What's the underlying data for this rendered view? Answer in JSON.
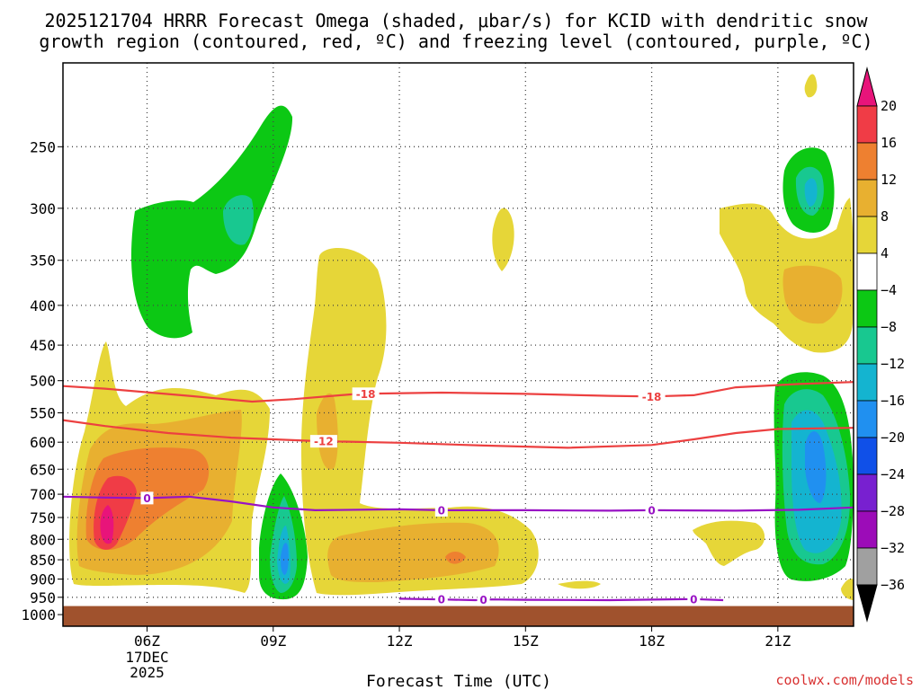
{
  "chart_data": {
    "type": "heatmap",
    "title_line1": "2025121704 HRRR Forecast Omega (shaded, μbar/s) for KCID with dendritic snow",
    "title_line2": "growth region (contoured, red, ºC) and freezing level (contoured, purple, ºC)",
    "xlabel": "Forecast Time (UTC)",
    "credit": "coolwx.com/models",
    "x_range_hours": [
      4.0,
      22.8
    ],
    "x_ticks": [
      {
        "hour": 6,
        "label": "06Z",
        "sub1": "17DEC",
        "sub2": "2025"
      },
      {
        "hour": 9,
        "label": "09Z"
      },
      {
        "hour": 12,
        "label": "12Z"
      },
      {
        "hour": 15,
        "label": "15Z"
      },
      {
        "hour": 18,
        "label": "18Z"
      },
      {
        "hour": 21,
        "label": "21Z"
      }
    ],
    "y_range_hpa": [
      195,
      1035
    ],
    "y_ticks": [
      250,
      300,
      350,
      400,
      450,
      500,
      550,
      600,
      650,
      700,
      750,
      800,
      850,
      900,
      950,
      1000
    ],
    "ground_level_hpa": 975,
    "colorbar": {
      "labels": [
        "20",
        "16",
        "12",
        "8",
        "4",
        "−4",
        "−8",
        "−12",
        "−16",
        "−20",
        "−24",
        "−28",
        "−32",
        "−36"
      ],
      "colors": [
        "#f03c46",
        "#ee8030",
        "#e8b030",
        "#e6d638",
        "#ffffff",
        "#0cc814",
        "#18c890",
        "#14b4d0",
        "#2090f0",
        "#1050e8",
        "#7820d0",
        "#9c0cb8",
        "#a0a0a0"
      ],
      "top_arrow_color": "#e8147a",
      "bottom_arrow_color": "#000000"
    },
    "contours": [
      {
        "name": "-18 C",
        "label": "-18",
        "color": "#ec4040",
        "points": [
          [
            4.0,
            508
          ],
          [
            5.0,
            512
          ],
          [
            7.0,
            523
          ],
          [
            8.5,
            532
          ],
          [
            9.5,
            528
          ],
          [
            11.0,
            520
          ],
          [
            13.0,
            518
          ],
          [
            15.0,
            520
          ],
          [
            17.0,
            523
          ],
          [
            18.0,
            524
          ],
          [
            19.0,
            522
          ],
          [
            20.0,
            510
          ],
          [
            21.5,
            505
          ],
          [
            22.8,
            502
          ]
        ],
        "label_hours": [
          11.2,
          18.0
        ]
      },
      {
        "name": "-12 C",
        "label": "-12",
        "color": "#ec4040",
        "points": [
          [
            4.0,
            562
          ],
          [
            5.0,
            572
          ],
          [
            6.5,
            584
          ],
          [
            8.0,
            592
          ],
          [
            9.0,
            595
          ],
          [
            10.0,
            598
          ],
          [
            12.0,
            601
          ],
          [
            14.0,
            606
          ],
          [
            16.0,
            610
          ],
          [
            18.0,
            605
          ],
          [
            19.0,
            595
          ],
          [
            20.0,
            584
          ],
          [
            21.0,
            577
          ],
          [
            22.8,
            575
          ]
        ],
        "label_hours": [
          10.2
        ]
      },
      {
        "name": "0 C freezing level",
        "label": "0",
        "color": "#9812c4",
        "points": [
          [
            4.0,
            705
          ],
          [
            5.0,
            707
          ],
          [
            6.0,
            708
          ],
          [
            7.0,
            705
          ],
          [
            8.0,
            715
          ],
          [
            9.0,
            728
          ],
          [
            10.0,
            734
          ],
          [
            12.0,
            732
          ],
          [
            13.0,
            734
          ],
          [
            15.0,
            734
          ],
          [
            17.0,
            735
          ],
          [
            18.0,
            734
          ],
          [
            20.0,
            735
          ],
          [
            21.5,
            733
          ],
          [
            22.8,
            728
          ]
        ],
        "label_hours": [
          6.0,
          13.0,
          18.0
        ]
      },
      {
        "name": "0 C near surface",
        "label": "0",
        "color": "#9812c4",
        "points": [
          [
            12.0,
            954
          ],
          [
            13.0,
            956
          ],
          [
            13.8,
            958
          ],
          [
            14.2,
            956
          ],
          [
            15.0,
            957
          ],
          [
            17.0,
            958
          ],
          [
            19.0,
            955
          ],
          [
            19.7,
            958
          ]
        ],
        "label_hours": [
          13.0,
          14.0,
          19.0
        ]
      }
    ]
  }
}
